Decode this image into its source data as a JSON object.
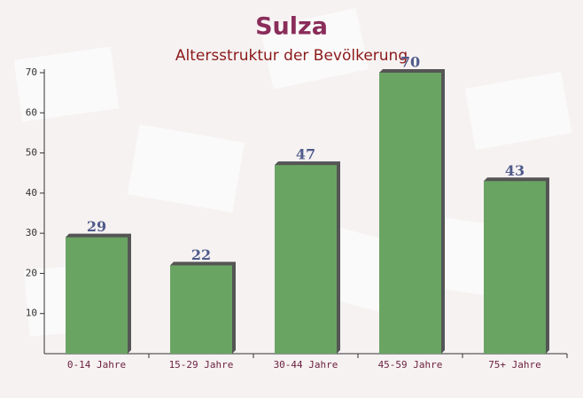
{
  "chart_data": {
    "type": "bar",
    "title": "Sulza",
    "subtitle": "Altersstruktur der Bevölkerung",
    "categories": [
      "0-14 Jahre",
      "15-29 Jahre",
      "30-44 Jahre",
      "45-59 Jahre",
      "75+ Jahre"
    ],
    "values": [
      29,
      22,
      47,
      70,
      43
    ],
    "color": "#6aa463",
    "ylim": [
      0,
      70
    ],
    "yticks": [
      10,
      20,
      30,
      40,
      50,
      60,
      70
    ],
    "grid": false
  }
}
